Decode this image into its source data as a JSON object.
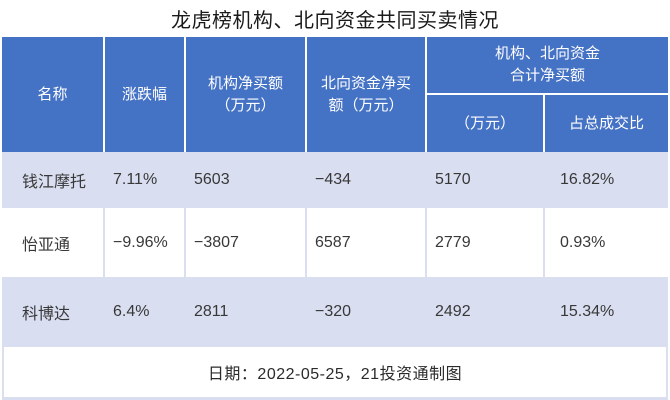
{
  "page": {
    "title": "龙虎榜机构、北向资金共同买卖情况",
    "footer": "日期：2022-05-25，21投资通制图"
  },
  "colors": {
    "header_bg": "#4472c4",
    "header_text": "#ffffff",
    "band_row_bg": "#d9def1",
    "plain_row_bg": "#ffffff",
    "body_text": "#383838"
  },
  "table": {
    "header": {
      "name": "名称",
      "change": "涨跌幅",
      "inst_line1": "机构净买额",
      "inst_line2": "（万元）",
      "north_line1": "北向资金净买",
      "north_line2": "额（万元）",
      "combo_line1": "机构、北向资金",
      "combo_line2": "合计净买额",
      "combo_amount": "（万元）",
      "combo_ratio": "占总成交比"
    },
    "rows": [
      {
        "name": "钱江摩托",
        "change": "7.11%",
        "inst": "5603",
        "north": "−434",
        "total": "5170",
        "ratio": "16.82%"
      },
      {
        "name": "怡亚通",
        "change": "−9.96%",
        "inst": "−3807",
        "north": "6587",
        "total": "2779",
        "ratio": "0.93%"
      },
      {
        "name": "科博达",
        "change": "6.4%",
        "inst": "2811",
        "north": "−320",
        "total": "2492",
        "ratio": "15.34%"
      }
    ]
  },
  "chart_data": {
    "type": "table",
    "title": "龙虎榜机构、北向资金共同买卖情况",
    "columns": [
      "名称",
      "涨跌幅",
      "机构净买额（万元）",
      "北向资金净买额（万元）",
      "机构、北向资金合计净买额（万元）",
      "机构、北向资金合计净买额占总成交比"
    ],
    "rows": [
      [
        "钱江摩托",
        "7.11%",
        5603,
        -434,
        5170,
        "16.82%"
      ],
      [
        "怡亚通",
        "-9.96%",
        -3807,
        6587,
        2779,
        "0.93%"
      ],
      [
        "科博达",
        "6.4%",
        2811,
        -320,
        2492,
        "15.34%"
      ]
    ],
    "footnote": "日期：2022-05-25，21投资通制图"
  }
}
